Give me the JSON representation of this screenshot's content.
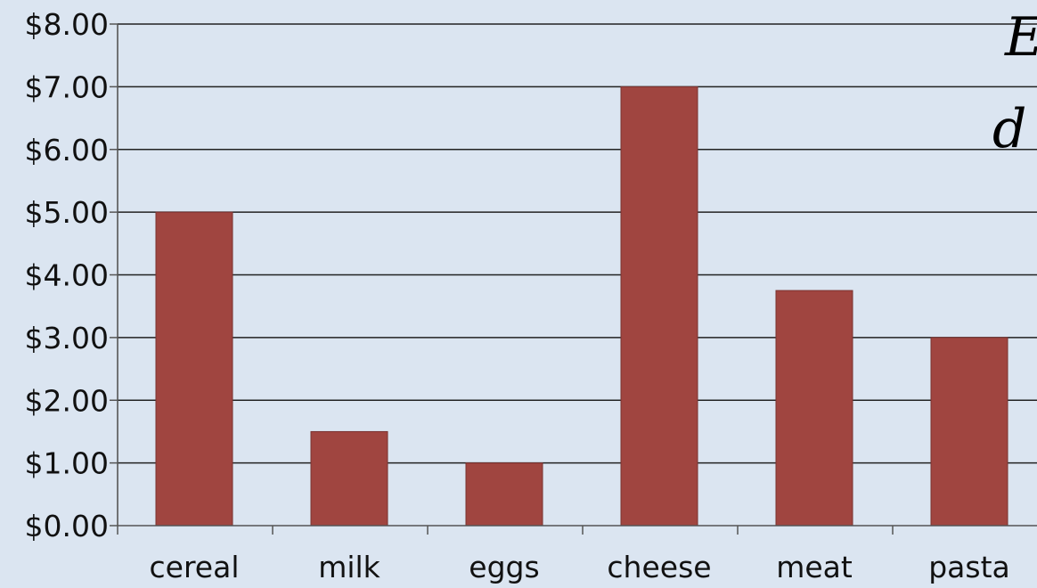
{
  "colors": {
    "background": "#dbe5f1",
    "bar": "#a04540",
    "bar_edge": "#7a3230",
    "gridline": "#222222",
    "axis": "#555555"
  },
  "overlay_text": [
    "E",
    "d"
  ],
  "chart_data": {
    "type": "bar",
    "title": "",
    "xlabel": "",
    "ylabel": "",
    "categories": [
      "cereal",
      "milk",
      "eggs",
      "cheese",
      "meat",
      "pasta"
    ],
    "values": [
      5.0,
      1.5,
      1.0,
      7.0,
      3.75,
      3.0
    ],
    "ylim": [
      0,
      8
    ],
    "y_ticks": [
      0,
      1,
      2,
      3,
      4,
      5,
      6,
      7,
      8
    ],
    "y_tick_labels": [
      "$0.00",
      "$1.00",
      "$2.00",
      "$3.00",
      "$4.00",
      "$5.00",
      "$6.00",
      "$7.00",
      "$8.00"
    ],
    "grid": true,
    "legend": "none"
  }
}
